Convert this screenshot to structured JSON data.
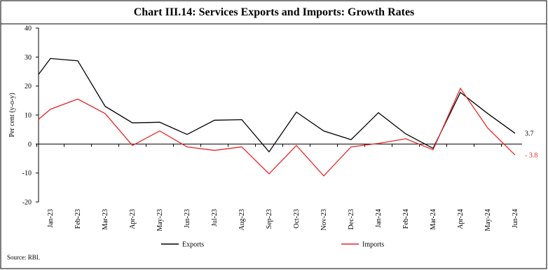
{
  "chart_data": {
    "type": "line",
    "title": "Chart III.14: Services Exports and Imports: Growth Rates",
    "ylabel": "Per cent (y-o-y)",
    "source": "Source: RBI.",
    "categories": [
      null,
      "Jan-23",
      "Feb-23",
      "Mar-23",
      "Apr-23",
      "May-23",
      "Jun-23",
      "Jul-23",
      "Aug-23",
      "Sep-23",
      "Oct-23",
      "Nov-23",
      "Dec-23",
      "Jan-24",
      "Feb-24",
      "Mar-24",
      "Apr-24",
      "May-24",
      "Jun-24"
    ],
    "series": [
      {
        "name": "Exports",
        "color": "#000000",
        "values": [
          24,
          29.5,
          28.7,
          13,
          7.3,
          7.5,
          3.3,
          8.2,
          8.4,
          -2.7,
          11,
          4.5,
          1.5,
          10.8,
          3.5,
          -1.5,
          17.8,
          10.5,
          3.7
        ]
      },
      {
        "name": "Imports",
        "color": "#e8262a",
        "values": [
          8.5,
          12,
          15.5,
          10.5,
          -0.5,
          4.5,
          -1,
          -2.2,
          -1,
          -10.3,
          -0.5,
          -11,
          -1,
          0.2,
          1.8,
          -2,
          19.2,
          5.5,
          -3.8
        ],
        "value_labels": [
          null,
          null,
          null,
          null,
          null,
          null,
          null,
          null,
          null,
          null,
          null,
          null,
          null,
          null,
          null,
          null,
          null,
          null,
          "- 3.8"
        ]
      }
    ],
    "ylim": [
      -20,
      40
    ],
    "yticks": [
      -20,
      -10,
      0,
      10,
      20,
      30,
      40
    ],
    "legend": "bottom"
  }
}
